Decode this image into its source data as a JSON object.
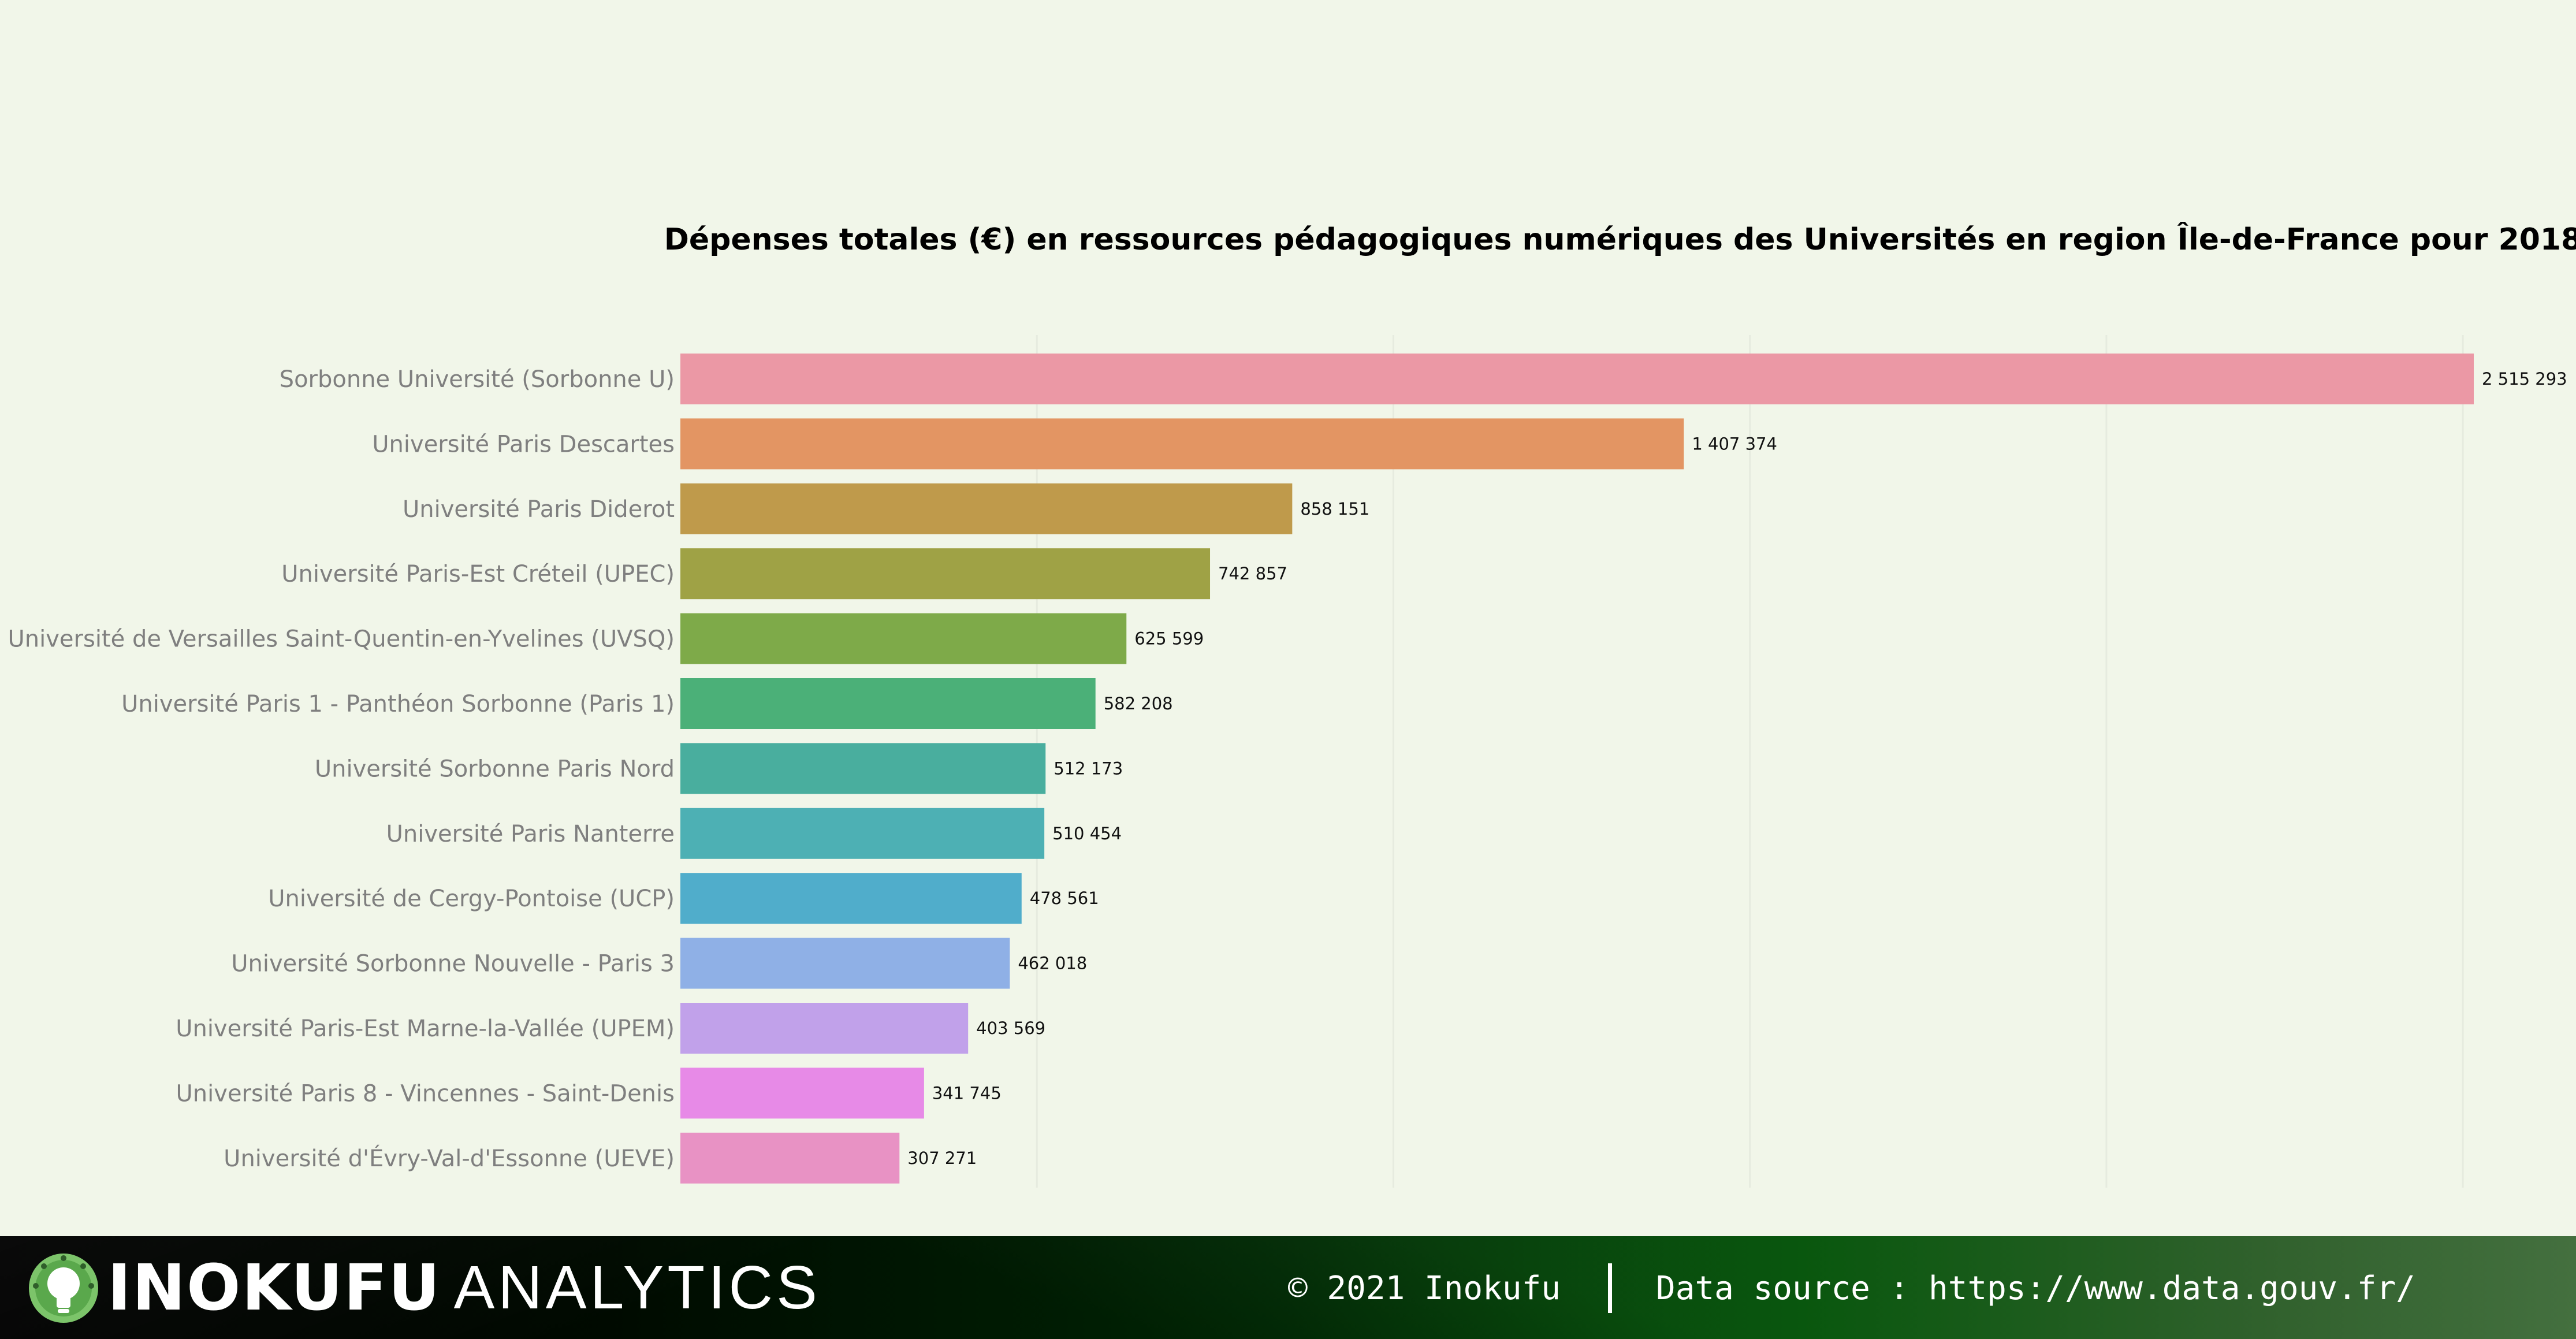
{
  "chart_data": {
    "type": "bar",
    "orientation": "horizontal",
    "title": "Dépenses totales (€) en ressources pédagogiques numériques des Universités en region Île-de-France pour 2018",
    "categories": [
      "Sorbonne Université (Sorbonne U)",
      "Université Paris Descartes",
      "Université Paris Diderot",
      "Université Paris-Est Créteil (UPEC)",
      "Université de Versailles Saint-Quentin-en-Yvelines (UVSQ)",
      "Université Paris 1 - Panthéon Sorbonne (Paris 1)",
      "Université Sorbonne Paris Nord",
      "Université Paris Nanterre",
      "Université de Cergy-Pontoise (UCP)",
      "Université Sorbonne Nouvelle - Paris 3",
      "Université Paris-Est Marne-la-Vallée (UPEM)",
      "Université Paris 8 - Vincennes - Saint-Denis",
      "Université d'Évry-Val-d'Essonne (UEVE)"
    ],
    "values": [
      2515293,
      1407374,
      858151,
      742857,
      625599,
      582208,
      512173,
      510454,
      478561,
      462018,
      403569,
      341745,
      307271
    ],
    "value_labels": [
      "2 515 293",
      "1 407 374",
      "858 151",
      "742 857",
      "625 599",
      "582 208",
      "512 173",
      "510 454",
      "478 561",
      "462 018",
      "403 569",
      "341 745",
      "307 271"
    ],
    "colors": [
      "#eb98a5",
      "#e39563",
      "#bf9a4b",
      "#9fa245",
      "#7eaa49",
      "#4bb078",
      "#49ae9e",
      "#4db0b4",
      "#50adcb",
      "#8fb0e6",
      "#c1a1ea",
      "#e78ae7",
      "#e892c4"
    ],
    "xlim": [
      0,
      2515293
    ],
    "grid": true,
    "grid_color": "#e6ebdf",
    "xlabel": "",
    "ylabel": ""
  },
  "footer": {
    "brand_strong": "INOKUFU",
    "brand_light": "ANALYTICS",
    "copyright": "© 2021 Inokufu",
    "data_source": "Data source : https://www.data.gouv.fr/",
    "logo_icon": "lightbulb-icon"
  }
}
